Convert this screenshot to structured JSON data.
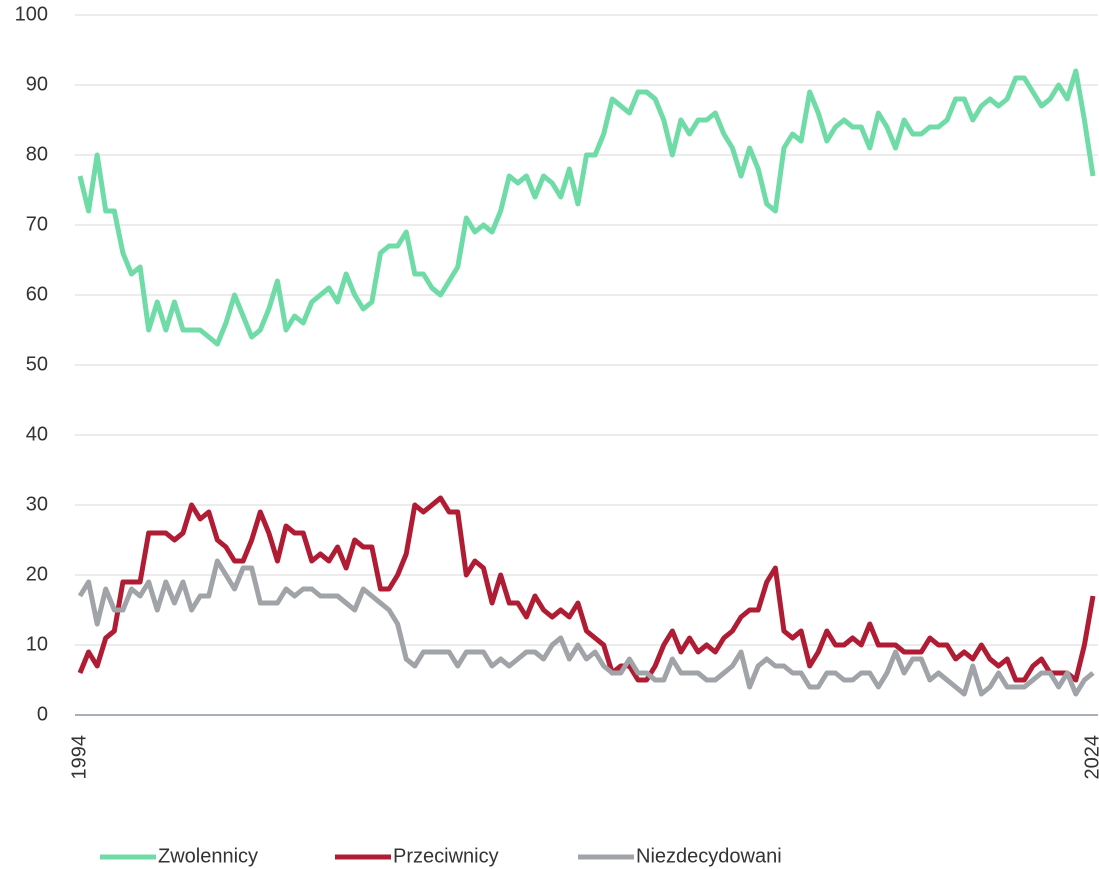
{
  "chart_data": {
    "type": "line",
    "categories": [
      "1994",
      null,
      null,
      null,
      null,
      null,
      null,
      null,
      null,
      null,
      null,
      null,
      null,
      null,
      null,
      null,
      null,
      null,
      null,
      null,
      null,
      null,
      null,
      null,
      null,
      null,
      null,
      null,
      null,
      null,
      null,
      null,
      null,
      null,
      null,
      null,
      null,
      null,
      null,
      null,
      null,
      null,
      null,
      null,
      null,
      null,
      null,
      null,
      null,
      null,
      null,
      null,
      null,
      null,
      null,
      null,
      null,
      null,
      null,
      null,
      null,
      null,
      null,
      null,
      null,
      null,
      null,
      null,
      null,
      null,
      null,
      null,
      null,
      null,
      null,
      null,
      null,
      null,
      null,
      null,
      null,
      null,
      null,
      null,
      null,
      null,
      null,
      null,
      null,
      null,
      null,
      null,
      null,
      null,
      null,
      null,
      null,
      null,
      null,
      null,
      null,
      null,
      null,
      null,
      null,
      null,
      null,
      null,
      null,
      null,
      null,
      null,
      null,
      null,
      null,
      null,
      null,
      null,
      "2024"
    ],
    "series": [
      {
        "name": "Zwolennicy",
        "color": "#6fdba6",
        "values": [
          77,
          72,
          80,
          72,
          72,
          66,
          63,
          64,
          55,
          59,
          55,
          59,
          55,
          55,
          55,
          54,
          53,
          56,
          60,
          57,
          54,
          55,
          58,
          62,
          55,
          57,
          56,
          59,
          60,
          61,
          59,
          63,
          60,
          58,
          59,
          66,
          67,
          67,
          69,
          63,
          63,
          61,
          60,
          62,
          64,
          71,
          69,
          70,
          69,
          72,
          77,
          76,
          77,
          74,
          77,
          76,
          74,
          78,
          73,
          80,
          80,
          83,
          88,
          87,
          86,
          89,
          89,
          88,
          85,
          80,
          85,
          83,
          85,
          85,
          86,
          83,
          81,
          77,
          81,
          78,
          73,
          72,
          81,
          83,
          82,
          89,
          86,
          82,
          84,
          85,
          84,
          84,
          81,
          86,
          84,
          81,
          85,
          83,
          83,
          84,
          84,
          85,
          88,
          88,
          85,
          87,
          88,
          87,
          88,
          91,
          91,
          89,
          87,
          88,
          90,
          88,
          92,
          85,
          77
        ]
      },
      {
        "name": "Przeciwnicy",
        "color": "#b01c33",
        "values": [
          6,
          9,
          7,
          11,
          12,
          19,
          19,
          19,
          26,
          26,
          26,
          25,
          26,
          30,
          28,
          29,
          25,
          24,
          22,
          22,
          25,
          29,
          26,
          22,
          27,
          26,
          26,
          22,
          23,
          22,
          24,
          21,
          25,
          24,
          24,
          18,
          18,
          20,
          23,
          30,
          29,
          30,
          31,
          29,
          29,
          20,
          22,
          21,
          16,
          20,
          16,
          16,
          14,
          17,
          15,
          14,
          15,
          14,
          16,
          12,
          11,
          10,
          6,
          7,
          7,
          5,
          5,
          7,
          10,
          12,
          9,
          11,
          9,
          10,
          9,
          11,
          12,
          14,
          15,
          15,
          19,
          21,
          12,
          11,
          12,
          7,
          9,
          12,
          10,
          10,
          11,
          10,
          13,
          10,
          10,
          10,
          9,
          9,
          9,
          11,
          10,
          10,
          8,
          9,
          8,
          10,
          8,
          7,
          8,
          5,
          5,
          7,
          8,
          6,
          6,
          6,
          5,
          10,
          17
        ]
      },
      {
        "name": "Niezdecydowani",
        "color": "#a0a3a7",
        "values": [
          17,
          19,
          13,
          18,
          15,
          15,
          18,
          17,
          19,
          15,
          19,
          16,
          19,
          15,
          17,
          17,
          22,
          20,
          18,
          21,
          21,
          16,
          16,
          16,
          18,
          17,
          18,
          18,
          17,
          17,
          17,
          16,
          15,
          18,
          17,
          16,
          15,
          13,
          8,
          7,
          9,
          9,
          9,
          9,
          7,
          9,
          9,
          9,
          7,
          8,
          7,
          8,
          9,
          9,
          8,
          10,
          11,
          8,
          10,
          8,
          9,
          7,
          6,
          6,
          8,
          6,
          6,
          5,
          5,
          8,
          6,
          6,
          6,
          5,
          5,
          6,
          7,
          9,
          4,
          7,
          8,
          7,
          7,
          6,
          6,
          4,
          4,
          6,
          6,
          5,
          5,
          6,
          6,
          4,
          6,
          9,
          6,
          8,
          8,
          5,
          6,
          5,
          4,
          3,
          7,
          3,
          4,
          6,
          4,
          4,
          4,
          5,
          6,
          6,
          4,
          6,
          3,
          5,
          6
        ]
      }
    ],
    "ylim": [
      0,
      100
    ],
    "yticks": [
      0,
      10,
      20,
      30,
      40,
      50,
      60,
      70,
      80,
      90,
      100
    ],
    "grid": true,
    "legend": "bottom"
  }
}
